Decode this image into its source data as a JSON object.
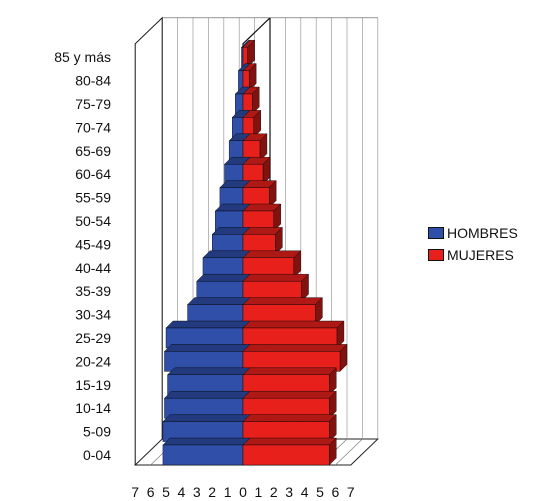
{
  "chart_data": {
    "type": "bar",
    "orientation": "horizontal-population-pyramid-3d",
    "categories": [
      "0-04",
      "5-09",
      "10-14",
      "15-19",
      "20-24",
      "25-29",
      "30-34",
      "35-39",
      "40-44",
      "45-49",
      "50-54",
      "55-59",
      "60-64",
      "65-69",
      "70-74",
      "75-79",
      "80-84",
      "85 y más"
    ],
    "series": [
      {
        "name": "HOMBRES",
        "color": "#2f4fa8",
        "values": [
          5.2,
          5.2,
          5.1,
          4.9,
          5.1,
          5.0,
          3.6,
          3.0,
          2.6,
          2.0,
          1.8,
          1.5,
          1.2,
          0.9,
          0.7,
          0.5,
          0.3,
          0.1
        ]
      },
      {
        "name": "MUJERES",
        "color": "#e8201c",
        "values": [
          5.6,
          5.6,
          5.6,
          5.6,
          6.3,
          6.1,
          4.7,
          3.8,
          3.3,
          2.1,
          2.0,
          1.7,
          1.3,
          1.1,
          0.7,
          0.6,
          0.4,
          0.3
        ]
      }
    ],
    "x_tick_labels": {
      "left": [
        "7",
        "6",
        "5",
        "4",
        "3",
        "2",
        "1",
        "0"
      ],
      "right": [
        "1",
        "2",
        "3",
        "4",
        "5",
        "6",
        "7"
      ]
    },
    "xlim": [
      -7,
      7
    ],
    "grid": true,
    "legend_position": "right"
  }
}
